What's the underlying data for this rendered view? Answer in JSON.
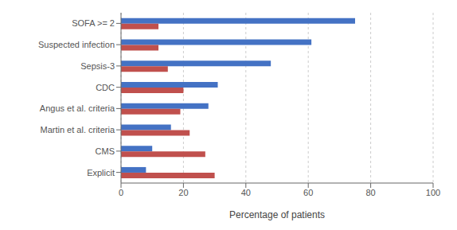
{
  "chart_data": {
    "type": "bar",
    "orientation": "horizontal",
    "xlabel": "Percentage of patients",
    "categories": [
      "SOFA >= 2",
      "Suspected infection",
      "Sepsis-3",
      "CDC",
      "Angus et al. criteria",
      "Martin et al. criteria",
      "CMS",
      "Explicit"
    ],
    "series": [
      {
        "color": "#C0504D",
        "values": [
          12,
          12,
          15,
          20,
          19,
          22,
          27,
          30
        ]
      },
      {
        "color": "#4472C4",
        "values": [
          75,
          61,
          48,
          31,
          28,
          16,
          10,
          8
        ]
      }
    ],
    "xlim": [
      0,
      100
    ],
    "xticks": [
      0,
      20,
      40,
      60,
      80,
      100
    ],
    "grid": true
  }
}
